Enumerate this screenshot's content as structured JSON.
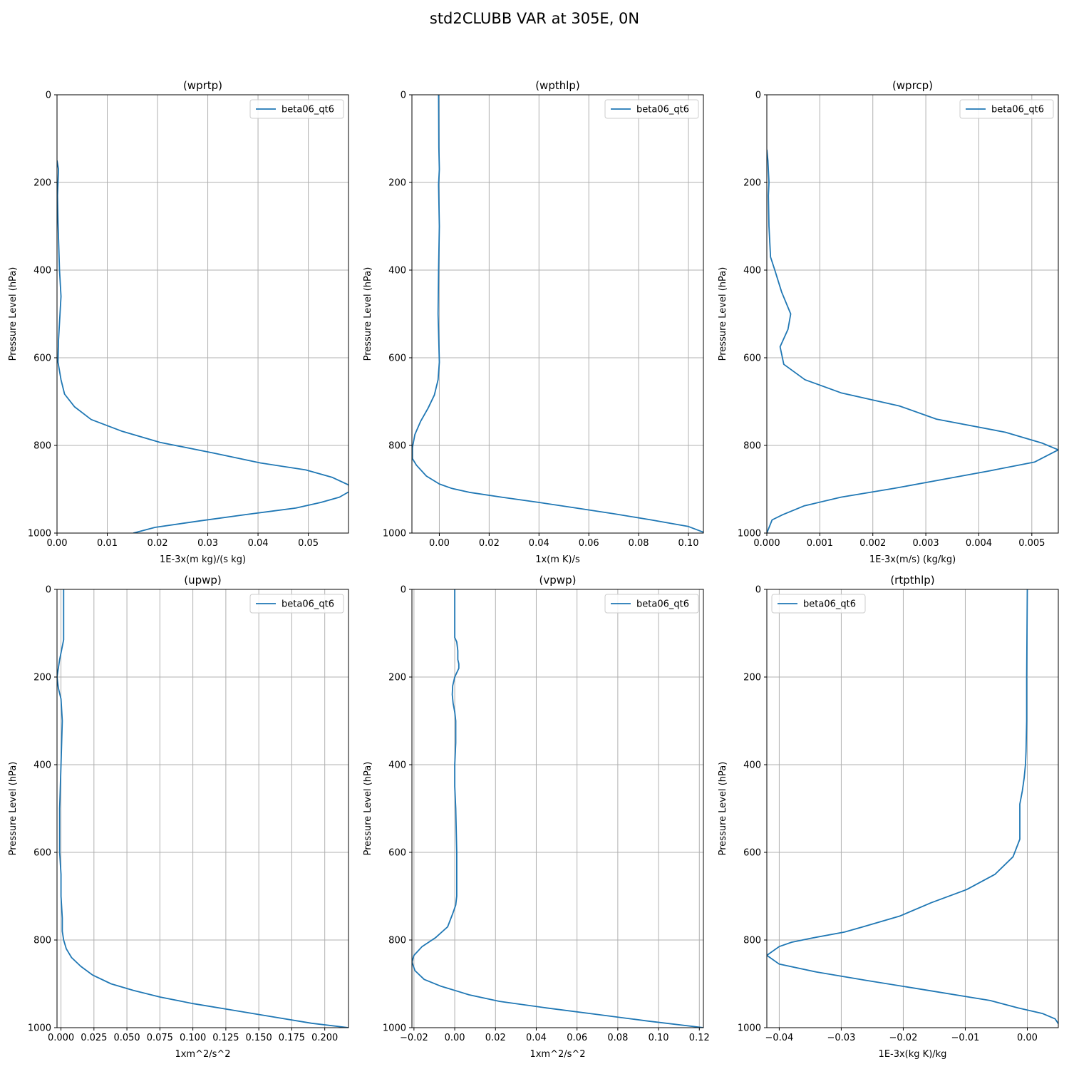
{
  "figure": {
    "title": "std2CLUBB VAR at 305E, 0N"
  },
  "colors": {
    "series": "#1f77b4",
    "grid": "#b0b0b0",
    "axes": "#000000",
    "legend_border": "#cccccc"
  },
  "chart_data": [
    {
      "type": "line",
      "title": "(wprtp)",
      "xlabel": "1E-3x(m kg)/(s kg)",
      "ylabel": "Pressure Level (hPa)",
      "xlim": [
        0,
        0.058
      ],
      "ylim": [
        1000,
        0
      ],
      "xticks": [
        0,
        0.01,
        0.02,
        0.03,
        0.04,
        0.05
      ],
      "xtick_labels": [
        "0.00",
        "0.01",
        "0.02",
        "0.03",
        "0.04",
        "0.05"
      ],
      "yticks": [
        0,
        200,
        400,
        600,
        800,
        1000
      ],
      "grid": true,
      "legend": "upper right",
      "series": [
        {
          "name": "beta06_qt6",
          "x": [
            0.0,
            0.0003,
            0.0001,
            0.0002,
            0.0005,
            0.0008,
            0.0006,
            0.0003,
            0.0002,
            0.0008,
            0.0015,
            0.0035,
            0.0068,
            0.013,
            0.0205,
            0.031,
            0.0405,
            0.0495,
            0.0548,
            0.058,
            0.0582,
            0.0562,
            0.0525,
            0.0475,
            0.038,
            0.0285,
            0.0195,
            0.0152
          ],
          "y": [
            150,
            170,
            230,
            290,
            400,
            460,
            500,
            560,
            610,
            650,
            683,
            712,
            741,
            768,
            793,
            817,
            840,
            856,
            873,
            890,
            905,
            918,
            930,
            943,
            957,
            972,
            987,
            1000
          ]
        }
      ]
    },
    {
      "type": "line",
      "title": "(wpthlp)",
      "xlabel": "1x(m K)/s",
      "ylabel": "Pressure Level (hPa)",
      "xlim": [
        -0.011,
        0.106
      ],
      "ylim": [
        1000,
        0
      ],
      "xticks": [
        0,
        0.02,
        0.04,
        0.06,
        0.08,
        0.1
      ],
      "xtick_labels": [
        "0.00",
        "0.02",
        "0.04",
        "0.06",
        "0.08",
        "0.10"
      ],
      "yticks": [
        0,
        200,
        400,
        600,
        800,
        1000
      ],
      "grid": true,
      "legend": "upper right",
      "series": [
        {
          "name": "beta06_qt6",
          "x": [
            -0.0003,
            -0.0002,
            0.0,
            -0.0003,
            0.0,
            -0.0003,
            -0.0005,
            0.0,
            -0.0005,
            -0.002,
            -0.0045,
            -0.0075,
            -0.0098,
            -0.0108,
            -0.0108,
            -0.0092,
            -0.0052,
            0.0,
            0.005,
            0.012,
            0.025,
            0.04,
            0.055,
            0.07,
            0.085,
            0.1,
            0.106
          ],
          "y": [
            0,
            120,
            170,
            205,
            300,
            400,
            500,
            610,
            650,
            685,
            715,
            745,
            775,
            805,
            830,
            845,
            870,
            888,
            898,
            907,
            918,
            930,
            943,
            956,
            970,
            985,
            998
          ]
        }
      ]
    },
    {
      "type": "line",
      "title": "(wprcp)",
      "xlabel": "1E-3x(m/s) (kg/kg)",
      "ylabel": "Pressure Level (hPa)",
      "xlim": [
        0,
        0.0055
      ],
      "ylim": [
        1000,
        0
      ],
      "xticks": [
        0,
        0.001,
        0.002,
        0.003,
        0.004,
        0.005
      ],
      "xtick_labels": [
        "0.000",
        "0.001",
        "0.002",
        "0.003",
        "0.004",
        "0.005"
      ],
      "yticks": [
        0,
        200,
        400,
        600,
        800,
        1000
      ],
      "grid": true,
      "legend": "upper right",
      "series": [
        {
          "name": "beta06_qt6",
          "x": [
            0.0,
            2e-05,
            4e-05,
            3e-05,
            4e-05,
            7e-05,
            0.00015,
            0.00028,
            0.00045,
            0.0004,
            0.00025,
            0.00032,
            0.00072,
            0.0014,
            0.0025,
            0.0032,
            0.0045,
            0.0052,
            0.0053,
            0.0055,
            0.00505,
            0.0042,
            0.0033,
            0.0024,
            0.0014,
            0.0007,
            0.0003,
            0.0001,
            0.0
          ],
          "y": [
            125,
            150,
            200,
            230,
            300,
            370,
            400,
            450,
            500,
            535,
            575,
            615,
            650,
            680,
            710,
            740,
            770,
            795,
            800,
            810,
            838,
            858,
            878,
            898,
            918,
            938,
            958,
            970,
            1000
          ]
        }
      ]
    },
    {
      "type": "line",
      "title": "(upwp)",
      "xlabel": "1xm^2/s^2",
      "ylabel": "Pressure Level (hPa)",
      "xlim": [
        -0.003,
        0.218
      ],
      "ylim": [
        1000,
        0
      ],
      "xticks": [
        0,
        0.025,
        0.05,
        0.075,
        0.1,
        0.125,
        0.15,
        0.175,
        0.2
      ],
      "xtick_labels": [
        "0.000",
        "0.025",
        "0.050",
        "0.075",
        "0.100",
        "0.125",
        "0.150",
        "0.175",
        "0.200"
      ],
      "yticks": [
        0,
        200,
        400,
        600,
        800,
        1000
      ],
      "grid": true,
      "legend": "upper right",
      "series": [
        {
          "name": "beta06_qt6",
          "x": [
            0.002,
            0.002,
            -0.001,
            -0.003,
            -0.002,
            0.0,
            0.001,
            0.0,
            -0.001,
            -0.001,
            0.0,
            0.0,
            0.001,
            0.001,
            0.002,
            0.004,
            0.008,
            0.015,
            0.024,
            0.038,
            0.055,
            0.075,
            0.1,
            0.13,
            0.16,
            0.19,
            0.218
          ],
          "y": [
            0,
            115,
            160,
            200,
            225,
            250,
            300,
            400,
            500,
            600,
            650,
            700,
            750,
            780,
            800,
            820,
            840,
            860,
            880,
            900,
            915,
            930,
            945,
            960,
            975,
            990,
            1000
          ]
        }
      ]
    },
    {
      "type": "line",
      "title": "(vpwp)",
      "xlabel": "1xm^2/s^2",
      "ylabel": "Pressure Level (hPa)",
      "xlim": [
        -0.021,
        0.122
      ],
      "ylim": [
        1000,
        0
      ],
      "xticks": [
        -0.02,
        0,
        0.02,
        0.04,
        0.06,
        0.08,
        0.1,
        0.12
      ],
      "xtick_labels": [
        "−0.02",
        "0.00",
        "0.02",
        "0.04",
        "0.06",
        "0.08",
        "0.10",
        "0.12"
      ],
      "yticks": [
        0,
        200,
        400,
        600,
        800,
        1000
      ],
      "grid": true,
      "legend": "upper right",
      "series": [
        {
          "name": "beta06_qt6",
          "x": [
            0.0,
            0.0,
            0.001,
            0.0015,
            0.0015,
            0.002,
            0.002,
            0.0,
            -0.001,
            -0.0012,
            -0.0008,
            0.0,
            0.0005,
            0.0005,
            0.0,
            0.0,
            0.0005,
            0.001,
            0.001,
            0.0005,
            -0.001,
            -0.0035,
            -0.0095,
            -0.016,
            -0.02,
            -0.021,
            -0.0195,
            -0.015,
            -0.007,
            0.0,
            0.007,
            0.022,
            0.045,
            0.07,
            0.095,
            0.122
          ],
          "y": [
            0,
            110,
            120,
            140,
            160,
            170,
            180,
            200,
            220,
            240,
            260,
            280,
            300,
            350,
            400,
            450,
            500,
            600,
            700,
            720,
            740,
            770,
            795,
            815,
            835,
            850,
            870,
            890,
            905,
            915,
            925,
            940,
            955,
            970,
            985,
            1000
          ]
        }
      ]
    },
    {
      "type": "line",
      "title": "(rtpthlp)",
      "xlabel": "1E-3x(kg K)/kg",
      "ylabel": "Pressure Level (hPa)",
      "xlim": [
        -0.042,
        0.005
      ],
      "ylim": [
        1000,
        0
      ],
      "xticks": [
        -0.04,
        -0.03,
        -0.02,
        -0.01,
        0
      ],
      "xtick_labels": [
        "−0.04",
        "−0.03",
        "−0.02",
        "−0.01",
        "0.00"
      ],
      "yticks": [
        0,
        200,
        400,
        600,
        800,
        1000
      ],
      "grid": true,
      "legend": "upper left",
      "series": [
        {
          "name": "beta06_qt6",
          "x": [
            0.0,
            -0.0001,
            -0.0001,
            -0.0002,
            -0.0003,
            -0.0005,
            -0.0008,
            -0.0012,
            -0.0012,
            -0.0012,
            -0.0023,
            -0.0052,
            -0.0098,
            -0.0155,
            -0.0205,
            -0.0265,
            -0.0295,
            -0.0345,
            -0.038,
            -0.04,
            -0.042,
            -0.04,
            -0.034,
            -0.026,
            -0.016,
            -0.006,
            -0.0015,
            0.0025,
            0.0045,
            0.0052
          ],
          "y": [
            0,
            200,
            300,
            370,
            400,
            430,
            460,
            490,
            520,
            570,
            610,
            650,
            685,
            715,
            745,
            770,
            782,
            795,
            805,
            815,
            835,
            855,
            873,
            892,
            915,
            938,
            955,
            968,
            980,
            995
          ]
        }
      ]
    }
  ]
}
